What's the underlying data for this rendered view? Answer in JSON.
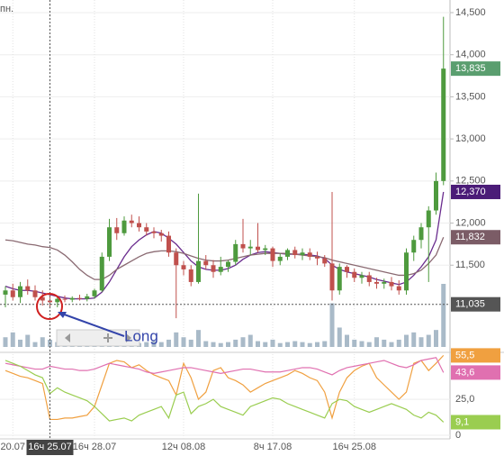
{
  "chart_data": [
    {
      "type": "candlestick",
      "title": "пн.",
      "annotation": "Long",
      "categories": [
        null,
        "20.07",
        null,
        null,
        null,
        null,
        "16ч 25.07",
        null,
        null,
        null,
        null,
        null,
        "16ч 28.07",
        null,
        null,
        null,
        null,
        null,
        null,
        null,
        null,
        null,
        null,
        null,
        "12ч 08.08",
        null,
        null,
        null,
        null,
        null,
        null,
        null,
        null,
        null,
        null,
        null,
        "8ч 17.08",
        null,
        null,
        null,
        null,
        null,
        null,
        null,
        null,
        null,
        null,
        "16ч 25.08",
        null,
        null,
        null,
        null,
        null,
        null,
        null,
        null,
        null,
        null,
        null,
        null
      ],
      "open": [
        11150,
        11200,
        11120,
        11250,
        11200,
        11120,
        11080,
        11060,
        11100,
        11090,
        11110,
        11100,
        11130,
        11200,
        11600,
        11950,
        11880,
        12030,
        12000,
        11950,
        11900,
        11880,
        11850,
        11650,
        11500,
        11450,
        11300,
        11550,
        11500,
        11420,
        11480,
        11540,
        11750,
        11700,
        11720,
        11680,
        11700,
        11550,
        11600,
        11680,
        11620,
        11650,
        11600,
        11580,
        11520,
        11200,
        11480,
        11420,
        11350,
        11380,
        11300,
        11280,
        11300,
        11250,
        11200,
        11650,
        11800,
        11950,
        12150,
        12500
      ],
      "high": [
        11250,
        11280,
        11300,
        11330,
        11260,
        11200,
        11150,
        11130,
        11140,
        11130,
        11150,
        11160,
        11220,
        11650,
        12050,
        12060,
        12080,
        12100,
        12080,
        12000,
        11950,
        11920,
        11900,
        11700,
        11550,
        11500,
        12350,
        11620,
        11560,
        11600,
        11560,
        11800,
        12050,
        11800,
        12000,
        11740,
        11720,
        11640,
        11700,
        11720,
        11700,
        11700,
        11660,
        11620,
        12370,
        11520,
        11500,
        11460,
        11420,
        11420,
        11350,
        11340,
        11360,
        11320,
        11700,
        11850,
        12000,
        12200,
        12600,
        14450
      ],
      "low": [
        11000,
        11080,
        11050,
        11150,
        11080,
        11020,
        11000,
        11000,
        11060,
        11060,
        11080,
        11070,
        11100,
        11180,
        11550,
        11800,
        11850,
        11950,
        11900,
        11850,
        11820,
        11780,
        11600,
        10870,
        11380,
        11250,
        11280,
        11450,
        11350,
        11380,
        11420,
        11500,
        11650,
        11620,
        11650,
        11620,
        11480,
        11500,
        11560,
        11580,
        11560,
        11560,
        11500,
        11480,
        11080,
        11150,
        11350,
        11300,
        11280,
        11250,
        11220,
        11220,
        11200,
        11150,
        11150,
        11550,
        11700,
        11300,
        12100,
        12450
      ],
      "close": [
        11200,
        11120,
        11250,
        11200,
        11120,
        11080,
        11060,
        11100,
        11090,
        11110,
        11100,
        11130,
        11200,
        11600,
        11950,
        11880,
        12030,
        12000,
        11950,
        11900,
        11880,
        11850,
        11650,
        11500,
        11450,
        11300,
        11550,
        11500,
        11420,
        11480,
        11540,
        11750,
        11700,
        11720,
        11680,
        11700,
        11550,
        11600,
        11680,
        11620,
        11650,
        11600,
        11580,
        11520,
        11200,
        11480,
        11420,
        11350,
        11380,
        11300,
        11280,
        11300,
        11250,
        11200,
        11650,
        11800,
        11950,
        12150,
        12500,
        13835
      ],
      "up_color": "#4e9a3e",
      "down_color": "#c0504d",
      "lines": [
        {
          "color": "#6a2c8e",
          "values": [
            11250,
            11220,
            11200,
            11200,
            11190,
            11170,
            11150,
            11130,
            11110,
            11100,
            11100,
            11100,
            11110,
            11180,
            11300,
            11450,
            11600,
            11720,
            11800,
            11860,
            11900,
            11880,
            11820,
            11750,
            11650,
            11550,
            11480,
            11450,
            11440,
            11440,
            11460,
            11500,
            11570,
            11620,
            11650,
            11660,
            11650,
            11640,
            11630,
            11630,
            11630,
            11620,
            11610,
            11580,
            11500,
            11450,
            11420,
            11400,
            11380,
            11360,
            11330,
            11310,
            11290,
            11270,
            11300,
            11380,
            11480,
            11600,
            11800,
            12370
          ]
        },
        {
          "color": "#8a6a72",
          "values": [
            11800,
            11790,
            11770,
            11750,
            11740,
            11720,
            11710,
            11680,
            11620,
            11540,
            11450,
            11380,
            11330,
            11330,
            11380,
            11450,
            11500,
            11550,
            11600,
            11640,
            11660,
            11670,
            11670,
            11660,
            11640,
            11610,
            11580,
            11560,
            11550,
            11550,
            11560,
            11580,
            11600,
            11620,
            11630,
            11640,
            11640,
            11640,
            11640,
            11630,
            11620,
            11610,
            11600,
            11590,
            11560,
            11540,
            11520,
            11500,
            11480,
            11460,
            11440,
            11420,
            11400,
            11380,
            11380,
            11400,
            11440,
            11520,
            11620,
            11832
          ]
        }
      ],
      "volume": [
        20,
        30,
        15,
        25,
        10,
        20,
        15,
        10,
        12,
        8,
        10,
        15,
        20,
        25,
        15,
        10,
        12,
        10,
        8,
        10,
        12,
        10,
        15,
        30,
        20,
        15,
        35,
        12,
        10,
        8,
        10,
        15,
        20,
        25,
        12,
        10,
        15,
        8,
        10,
        12,
        10,
        8,
        10,
        12,
        90,
        40,
        25,
        15,
        12,
        10,
        20,
        15,
        10,
        15,
        25,
        30,
        20,
        25,
        35,
        130
      ],
      "volume_color": "#a9bac8",
      "ylim": [
        10475,
        14650
      ],
      "yticks": [
        {
          "value": 11500,
          "label": "11,500"
        },
        {
          "value": 12000,
          "label": "12,000"
        },
        {
          "value": 12500,
          "label": "12,500"
        },
        {
          "value": 13000,
          "label": "13,000"
        },
        {
          "value": 13500,
          "label": "13,500"
        },
        {
          "value": 14000,
          "label": "14,000"
        },
        {
          "value": 14500,
          "label": "14,500"
        }
      ],
      "grid": true,
      "markers": [
        {
          "value": 13835,
          "label": "13,835",
          "color": "#5a9e6f"
        },
        {
          "value": 12370,
          "label": "12,370",
          "color": "#4b1c78"
        },
        {
          "value": 11832,
          "label": "11,832",
          "color": "#7b5c66"
        }
      ],
      "crosshair": {
        "x": "16ч 25.07",
        "value": 11035,
        "label": "11,035",
        "color": "#555555"
      }
    },
    {
      "type": "line",
      "series": [
        {
          "color": "#f0a040",
          "values": [
            45,
            43,
            41,
            40,
            38,
            36,
            11,
            11,
            12,
            12,
            13,
            14,
            20,
            35,
            50,
            52,
            51,
            47,
            49,
            45,
            42,
            40,
            38,
            28,
            50,
            40,
            25,
            30,
            45,
            47,
            40,
            38,
            35,
            30,
            33,
            36,
            38,
            40,
            42,
            45,
            43,
            40,
            38,
            30,
            12,
            30,
            40,
            45,
            48,
            50,
            40,
            35,
            30,
            25,
            30,
            50,
            52,
            45,
            50,
            55.5
          ]
        },
        {
          "color": "#e070b0",
          "values": [
            50,
            49,
            48,
            47,
            46,
            46,
            48,
            47,
            46,
            46,
            45,
            45,
            46,
            48,
            50,
            49,
            48,
            47,
            46,
            44,
            43,
            44,
            45,
            46,
            47,
            47,
            46,
            45,
            44,
            43,
            44,
            45,
            46,
            46,
            45,
            44,
            44,
            44,
            45,
            46,
            47,
            47,
            46,
            44,
            42,
            45,
            47,
            48,
            49,
            50,
            51,
            52,
            50,
            48,
            47,
            49,
            52,
            53,
            54,
            43.6
          ]
        },
        {
          "color": "#9acd50",
          "values": [
            52,
            50,
            48,
            45,
            42,
            40,
            29,
            33,
            30,
            28,
            26,
            24,
            20,
            15,
            10,
            11,
            12,
            10,
            14,
            16,
            18,
            20,
            12,
            28,
            30,
            15,
            20,
            22,
            25,
            20,
            18,
            16,
            14,
            20,
            22,
            24,
            26,
            25,
            22,
            20,
            18,
            16,
            14,
            12,
            22,
            25,
            24,
            20,
            18,
            16,
            18,
            20,
            22,
            20,
            18,
            14,
            12,
            16,
            14,
            9.1
          ]
        }
      ],
      "ylim": [
        -2.5,
        57
      ],
      "yticks": [
        0,
        {
          "value": 25,
          "label": "25,0"
        }
      ],
      "grid": true,
      "markers": [
        {
          "value": 55.5,
          "label": "55,5",
          "color": "#f0a040"
        },
        {
          "value": 43.6,
          "label": "43,6",
          "color": "#e070b0"
        },
        {
          "value": 9.1,
          "label": "9,1",
          "color": "#9acd50"
        }
      ]
    }
  ]
}
